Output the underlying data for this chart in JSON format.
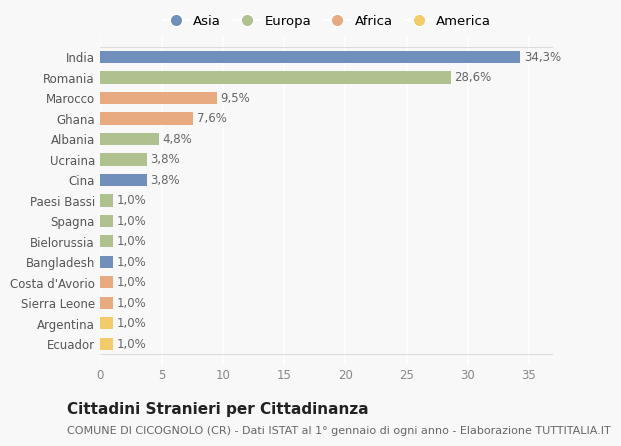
{
  "categories": [
    "Ecuador",
    "Argentina",
    "Sierra Leone",
    "Costa d'Avorio",
    "Bangladesh",
    "Bielorussia",
    "Spagna",
    "Paesi Bassi",
    "Cina",
    "Ucraina",
    "Albania",
    "Ghana",
    "Marocco",
    "Romania",
    "India"
  ],
  "values": [
    1.0,
    1.0,
    1.0,
    1.0,
    1.0,
    1.0,
    1.0,
    1.0,
    3.8,
    3.8,
    4.8,
    7.6,
    9.5,
    28.6,
    34.3
  ],
  "labels": [
    "1,0%",
    "1,0%",
    "1,0%",
    "1,0%",
    "1,0%",
    "1,0%",
    "1,0%",
    "1,0%",
    "3,8%",
    "3,8%",
    "4,8%",
    "7,6%",
    "9,5%",
    "28,6%",
    "34,3%"
  ],
  "continents": [
    "America",
    "America",
    "Africa",
    "Africa",
    "Asia",
    "Europa",
    "Europa",
    "Europa",
    "Asia",
    "Europa",
    "Europa",
    "Africa",
    "Africa",
    "Europa",
    "Asia"
  ],
  "colors": {
    "Asia": "#7090bb",
    "Europa": "#afc18e",
    "Africa": "#e8aa80",
    "America": "#f2cc6a"
  },
  "legend_order": [
    "Asia",
    "Europa",
    "Africa",
    "America"
  ],
  "title": "Cittadini Stranieri per Cittadinanza",
  "subtitle": "COMUNE DI CICOGNOLO (CR) - Dati ISTAT al 1° gennaio di ogni anno - Elaborazione TUTTITALIA.IT",
  "xlim": [
    0,
    37
  ],
  "xticks": [
    0,
    5,
    10,
    15,
    20,
    25,
    30,
    35
  ],
  "background_color": "#f8f8f8",
  "grid_color": "#ffffff",
  "bar_height": 0.6,
  "label_fontsize": 8.5,
  "tick_fontsize": 8.5,
  "ytick_fontsize": 8.5,
  "title_fontsize": 11,
  "subtitle_fontsize": 8
}
